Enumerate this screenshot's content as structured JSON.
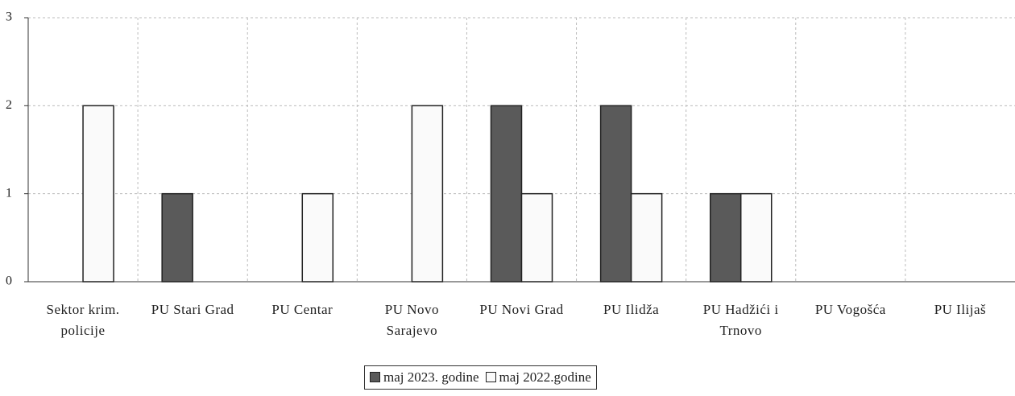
{
  "chart_data": {
    "type": "bar",
    "categories": [
      "Sektor krim. policije",
      "PU Stari Grad",
      "PU Centar",
      "PU Novo Sarajevo",
      "PU Novi Grad",
      "PU Ilidža",
      "PU Hadžići i Trnovo",
      "PU Vogošća",
      "PU Ilijaš"
    ],
    "series": [
      {
        "name": "maj 2023. godine",
        "color": "#5a5a5a",
        "values": [
          0,
          1,
          0,
          0,
          2,
          2,
          1,
          0,
          0
        ]
      },
      {
        "name": "maj 2022.godine",
        "color": "#fafafa",
        "values": [
          2,
          0,
          1,
          2,
          1,
          1,
          1,
          0,
          0
        ]
      }
    ],
    "ylim": [
      0,
      3
    ],
    "yticks": [
      0,
      1,
      2,
      3
    ],
    "grid": true,
    "legend": "bottom"
  }
}
